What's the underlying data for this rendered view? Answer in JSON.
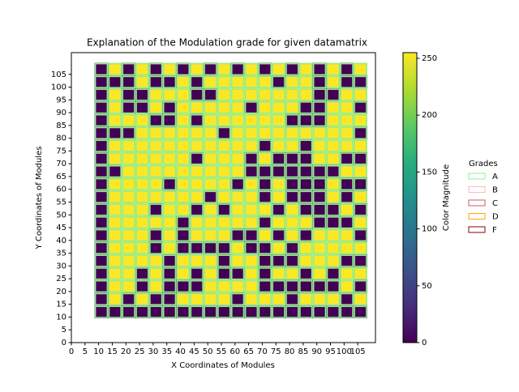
{
  "chart_data": {
    "type": "heatmap",
    "title": "Explanation of the Modulation grade for given datamatrix",
    "x_label": "X Coordinates of Modules",
    "y_label": "Y Coordinates of Modules",
    "x": [
      11,
      16,
      21,
      26,
      31,
      36,
      41,
      46,
      51,
      56,
      61,
      66,
      71,
      76,
      81,
      86,
      91,
      96,
      101,
      106
    ],
    "y": [
      107,
      102,
      97,
      92,
      87,
      82,
      77,
      72,
      67,
      62,
      57,
      52,
      47,
      42,
      37,
      32,
      27,
      22,
      17,
      12
    ],
    "z": [
      [
        0,
        255,
        0,
        255,
        0,
        255,
        0,
        255,
        0,
        255,
        0,
        255,
        0,
        255,
        0,
        255,
        0,
        255,
        0,
        255
      ],
      [
        0,
        0,
        0,
        255,
        0,
        0,
        255,
        0,
        255,
        255,
        255,
        255,
        255,
        0,
        255,
        255,
        0,
        255,
        0,
        0
      ],
      [
        0,
        255,
        0,
        0,
        255,
        255,
        255,
        0,
        0,
        255,
        255,
        255,
        255,
        255,
        255,
        255,
        0,
        0,
        255,
        255
      ],
      [
        0,
        255,
        0,
        0,
        255,
        0,
        255,
        255,
        255,
        255,
        255,
        0,
        255,
        255,
        255,
        0,
        0,
        255,
        255,
        0
      ],
      [
        0,
        255,
        255,
        255,
        0,
        0,
        255,
        0,
        255,
        255,
        255,
        255,
        255,
        255,
        0,
        0,
        0,
        255,
        255,
        255
      ],
      [
        0,
        0,
        0,
        255,
        255,
        255,
        255,
        255,
        255,
        0,
        255,
        255,
        255,
        255,
        255,
        255,
        255,
        255,
        255,
        0
      ],
      [
        0,
        255,
        255,
        255,
        255,
        255,
        255,
        255,
        255,
        255,
        255,
        255,
        0,
        255,
        255,
        0,
        255,
        255,
        255,
        255
      ],
      [
        0,
        255,
        255,
        255,
        255,
        255,
        255,
        0,
        255,
        255,
        255,
        0,
        255,
        0,
        0,
        0,
        255,
        255,
        0,
        0
      ],
      [
        0,
        0,
        255,
        255,
        255,
        255,
        255,
        255,
        255,
        255,
        255,
        0,
        0,
        0,
        0,
        0,
        0,
        0,
        255,
        255
      ],
      [
        0,
        255,
        255,
        255,
        255,
        0,
        255,
        255,
        255,
        255,
        0,
        255,
        0,
        255,
        0,
        0,
        0,
        255,
        0,
        0
      ],
      [
        0,
        255,
        255,
        255,
        255,
        255,
        255,
        255,
        0,
        255,
        255,
        255,
        0,
        255,
        0,
        0,
        0,
        255,
        0,
        255
      ],
      [
        0,
        255,
        255,
        255,
        0,
        255,
        255,
        0,
        255,
        0,
        255,
        255,
        255,
        0,
        255,
        0,
        0,
        0,
        255,
        0
      ],
      [
        0,
        255,
        255,
        255,
        255,
        255,
        0,
        255,
        255,
        255,
        255,
        255,
        0,
        255,
        255,
        255,
        0,
        0,
        0,
        255
      ],
      [
        0,
        255,
        255,
        255,
        0,
        255,
        0,
        255,
        255,
        255,
        0,
        0,
        255,
        0,
        255,
        0,
        255,
        255,
        255,
        0
      ],
      [
        0,
        255,
        255,
        255,
        0,
        255,
        0,
        0,
        0,
        0,
        255,
        0,
        0,
        255,
        0,
        255,
        255,
        255,
        255,
        255
      ],
      [
        0,
        255,
        255,
        255,
        255,
        0,
        255,
        255,
        255,
        0,
        255,
        255,
        0,
        0,
        0,
        255,
        255,
        255,
        0,
        0
      ],
      [
        0,
        255,
        255,
        0,
        255,
        0,
        255,
        0,
        255,
        0,
        0,
        255,
        0,
        255,
        255,
        0,
        255,
        0,
        255,
        255
      ],
      [
        0,
        255,
        255,
        0,
        255,
        0,
        0,
        0,
        255,
        255,
        255,
        255,
        0,
        0,
        0,
        0,
        0,
        0,
        255,
        0
      ],
      [
        0,
        255,
        0,
        255,
        0,
        0,
        255,
        255,
        255,
        255,
        0,
        255,
        255,
        255,
        0,
        255,
        255,
        255,
        0,
        255
      ],
      [
        0,
        0,
        0,
        0,
        0,
        0,
        0,
        0,
        0,
        0,
        0,
        0,
        0,
        0,
        0,
        0,
        0,
        0,
        0,
        0
      ]
    ],
    "xlim": [
      0,
      111.5
    ],
    "ylim": [
      0,
      113.5
    ],
    "xticks": [
      0,
      5,
      10,
      15,
      20,
      25,
      30,
      35,
      40,
      45,
      50,
      55,
      60,
      65,
      70,
      75,
      80,
      85,
      90,
      95,
      100,
      105
    ],
    "yticks": [
      0,
      5,
      10,
      15,
      20,
      25,
      30,
      35,
      40,
      45,
      50,
      55,
      60,
      65,
      70,
      75,
      80,
      85,
      90,
      95,
      100,
      105
    ],
    "colormap": "viridis",
    "colorbar": {
      "label": "Color Magnitude",
      "lim": [
        0,
        255
      ],
      "ticks": [
        0,
        50,
        100,
        150,
        200,
        250
      ]
    },
    "legend": {
      "title": "Grades",
      "entries": [
        {
          "name": "A",
          "color": "#90ee90"
        },
        {
          "name": "B",
          "color": "#ffb6c1"
        },
        {
          "name": "C",
          "color": "#cd5c5c"
        },
        {
          "name": "D",
          "color": "#ffa500"
        },
        {
          "name": "F",
          "color": "#8b0000"
        }
      ]
    }
  }
}
